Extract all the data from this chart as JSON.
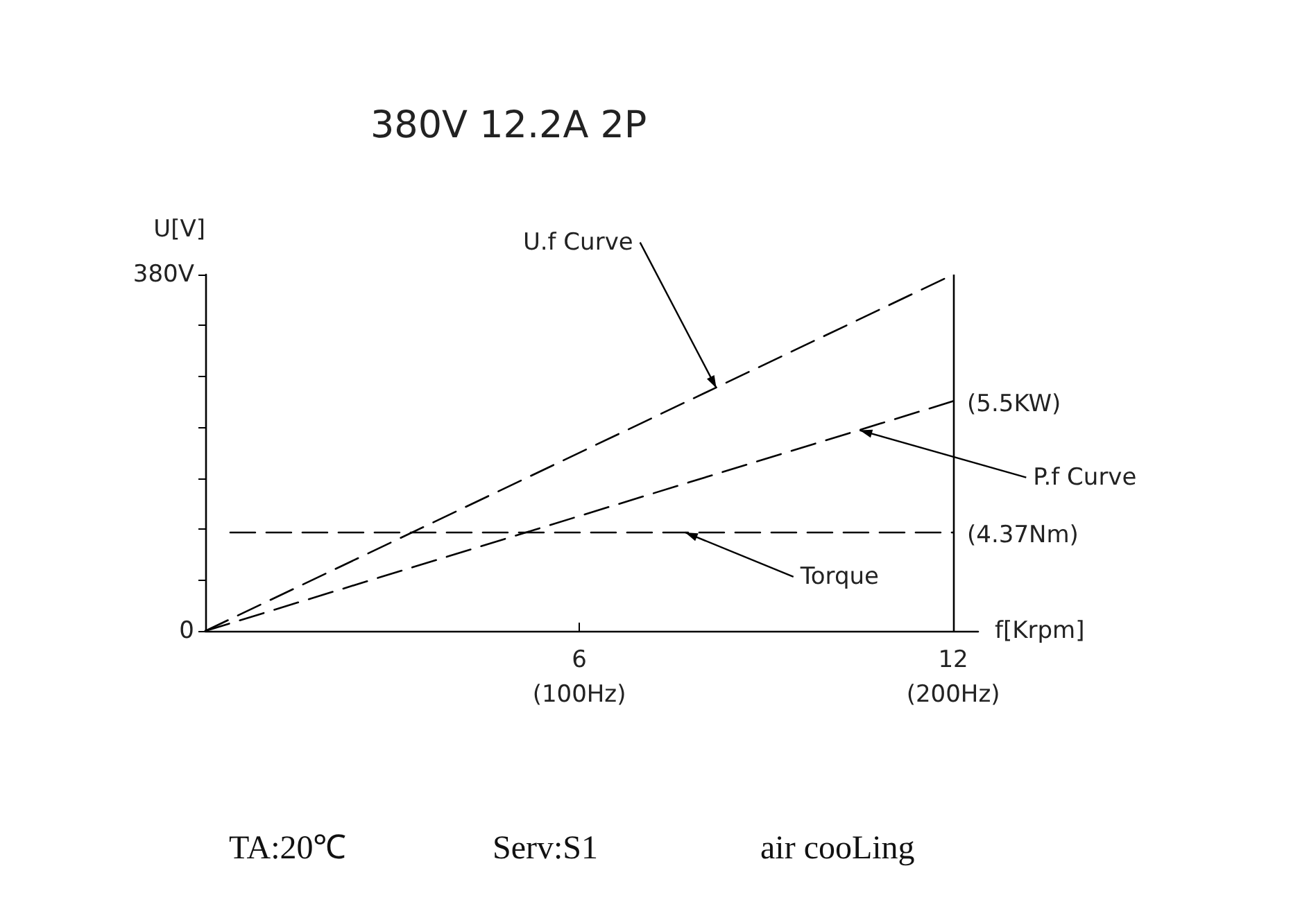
{
  "chart_data": {
    "type": "line",
    "subtitle": "380V 12.2A 2P",
    "xlabel": "f[Krpm]",
    "ylabel": "U[V]",
    "xlim": [
      0,
      12.4
    ],
    "xticks": [
      6,
      12
    ],
    "ylim": [
      0,
      380
    ],
    "yticks": [
      {
        "value": 0,
        "label": "0"
      },
      {
        "value": 54.29,
        "label": null
      },
      {
        "value": 108.57,
        "label": null
      },
      {
        "value": 162.86,
        "label": null
      },
      {
        "value": 217.14,
        "label": null
      },
      {
        "value": 271.43,
        "label": null
      },
      {
        "value": 325.71,
        "label": null
      },
      {
        "value": 380,
        "label": "380V"
      }
    ],
    "series": [
      {
        "color": "#000000",
        "x": [
          0,
          12
        ],
        "values": [
          0,
          380
        ]
      },
      {
        "color": "#000000",
        "x": [
          0,
          12
        ],
        "values": [
          0,
          245
        ]
      },
      {
        "color": "#000000",
        "x": [
          0.4,
          12
        ],
        "values": [
          105,
          105
        ]
      }
    ],
    "ref_lines": [
      {
        "axis": "x",
        "value": 12,
        "color": "#000000",
        "line_style": "solid"
      }
    ],
    "annotations": [
      {
        "text": "U.f Curve",
        "x": 8.2,
        "y": 259
      },
      {
        "text": "P.f Curve",
        "x": 10.5,
        "y": 214
      },
      {
        "text": "Torque",
        "x": 7.7,
        "y": 105
      },
      {
        "text": "(5.5KW)",
        "x": 12,
        "y": 245
      },
      {
        "text": "(4.37Nm)",
        "x": 12,
        "y": 105
      },
      "(100Hz)",
      "(200Hz)",
      "TA:20℃",
      "Serv:S1",
      "air cooLing"
    ],
    "line_style": "dashed",
    "marker": "none"
  }
}
